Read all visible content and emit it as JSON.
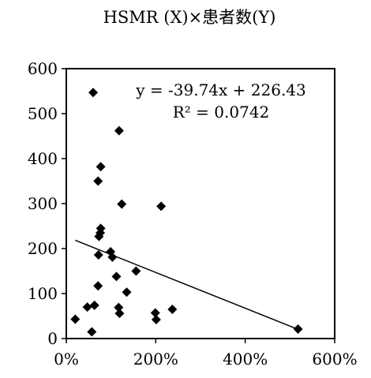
{
  "chart_data": {
    "type": "scatter",
    "title": "HSMR (X)×患者数(Y)",
    "xlabel": "",
    "ylabel": "",
    "xlim": [
      0,
      6
    ],
    "ylim": [
      0,
      600
    ],
    "x_ticks": [
      0,
      2,
      4,
      6
    ],
    "x_tick_labels": [
      "0%",
      "200%",
      "400%",
      "600%"
    ],
    "y_ticks": [
      0,
      100,
      200,
      300,
      400,
      500,
      600
    ],
    "y_tick_labels": [
      "0",
      "100",
      "200",
      "300",
      "400",
      "500",
      "600"
    ],
    "grid": false,
    "legend": "none",
    "marker": "diamond",
    "marker_color": "#000000",
    "points": [
      {
        "x": 0.6,
        "y": 547
      },
      {
        "x": 1.18,
        "y": 462
      },
      {
        "x": 0.77,
        "y": 382
      },
      {
        "x": 0.71,
        "y": 350
      },
      {
        "x": 1.24,
        "y": 299
      },
      {
        "x": 2.12,
        "y": 294
      },
      {
        "x": 0.77,
        "y": 245
      },
      {
        "x": 0.76,
        "y": 235
      },
      {
        "x": 0.73,
        "y": 227
      },
      {
        "x": 0.99,
        "y": 193
      },
      {
        "x": 1.03,
        "y": 181
      },
      {
        "x": 0.72,
        "y": 186
      },
      {
        "x": 1.56,
        "y": 150
      },
      {
        "x": 1.12,
        "y": 138
      },
      {
        "x": 0.71,
        "y": 117
      },
      {
        "x": 1.35,
        "y": 103
      },
      {
        "x": 0.63,
        "y": 74
      },
      {
        "x": 0.47,
        "y": 70
      },
      {
        "x": 1.17,
        "y": 69
      },
      {
        "x": 2.37,
        "y": 65
      },
      {
        "x": 1.19,
        "y": 56
      },
      {
        "x": 1.99,
        "y": 57
      },
      {
        "x": 2.01,
        "y": 42
      },
      {
        "x": 0.2,
        "y": 43
      },
      {
        "x": 0.57,
        "y": 15
      },
      {
        "x": 5.18,
        "y": 21
      }
    ],
    "trendline": {
      "type": "linear",
      "slope": -39.74,
      "intercept": 226.43,
      "x_from": 0.2,
      "x_to": 5.18,
      "equation_label": "y = -39.74x + 226.43",
      "r2_label": "R² = 0.0742",
      "color": "#000000"
    }
  }
}
